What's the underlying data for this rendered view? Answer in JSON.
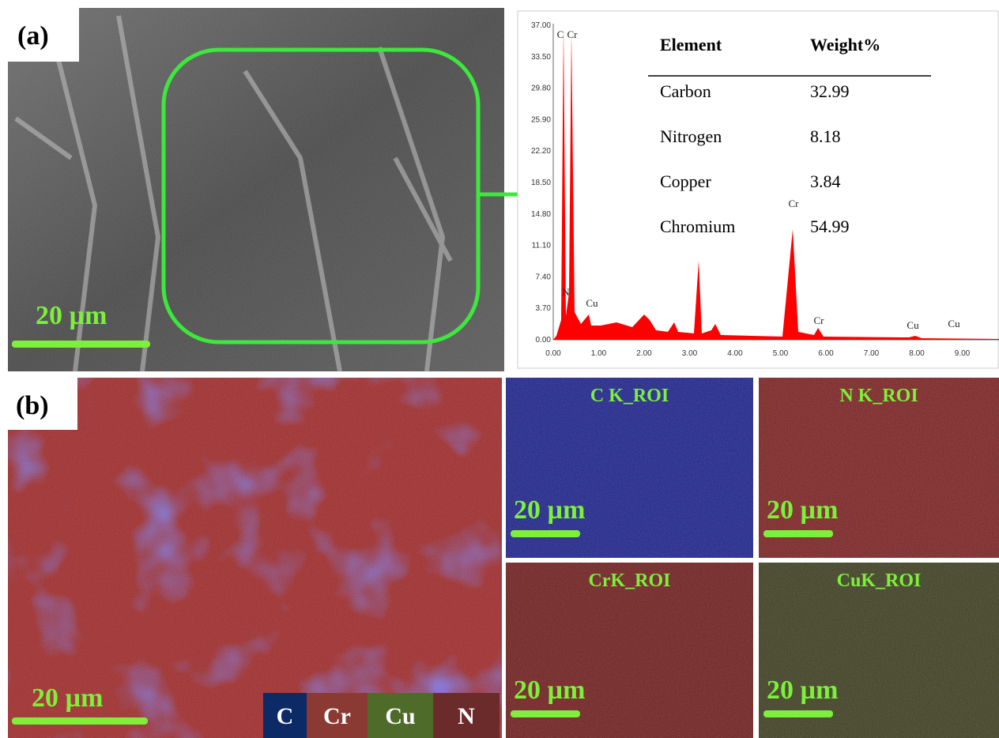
{
  "panel_a": {
    "label": "(a)",
    "scale_bar": "20 µm"
  },
  "spectrum": {
    "y_ticks": [
      "37.00",
      "33.50",
      "29.80",
      "25.90",
      "22.20",
      "18.50",
      "14.80",
      "11.10",
      "7.40",
      "3.70",
      "0.00"
    ],
    "x_ticks": [
      "0.00",
      "1.00",
      "2.00",
      "3.00",
      "4.00",
      "5.00",
      "6.00",
      "7.00",
      "8.00",
      "9.00"
    ],
    "peak_labels": [
      "C",
      "Cr",
      "N",
      "Cu",
      "Cr",
      "Cr",
      "Cu",
      "Cu"
    ],
    "table": {
      "header": [
        "Element",
        "Weight%"
      ],
      "rows": [
        [
          "Carbon",
          "32.99"
        ],
        [
          "Nitrogen",
          "8.18"
        ],
        [
          "Copper",
          "3.84"
        ],
        [
          "Chromium",
          "54.99"
        ]
      ]
    }
  },
  "panel_b": {
    "label": "(b)",
    "scale_bar": "20 µm",
    "legend": [
      "C",
      "Cr",
      "Cu",
      "N"
    ]
  },
  "maps": [
    {
      "title": "C K_ROI",
      "scale_bar": "20 µm"
    },
    {
      "title": "N K_ROI",
      "scale_bar": "20 µm"
    },
    {
      "title": "CrK_ROI",
      "scale_bar": "20 µm"
    },
    {
      "title": "CuK_ROI",
      "scale_bar": "20 µm"
    }
  ]
}
